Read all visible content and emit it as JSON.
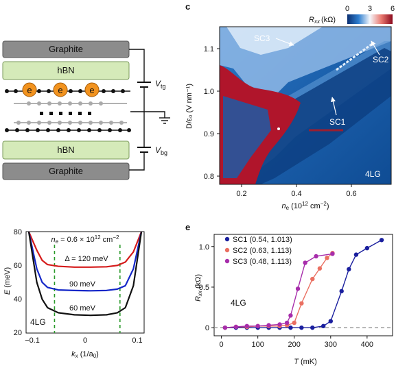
{
  "panel_labels": {
    "c": "c",
    "e": "e"
  },
  "schematic": {
    "top_graphite": "Graphite",
    "top_hbn": "hBN",
    "bottom_hbn": "hBN",
    "bottom_graphite": "Graphite",
    "electron_label": "e",
    "vtg": {
      "v": "V",
      "sub": "tg"
    },
    "vbg": {
      "v": "V",
      "sub": "bg"
    }
  },
  "colors": {
    "graphite": "#8c8c8c",
    "hbn": "#d5eab9",
    "electron": "#f2931f",
    "map_blue": "#1a5ea8",
    "map_red": "#b0152b",
    "line_black": "#111111",
    "line_blue": "#1326c8",
    "line_red": "#d51a1a",
    "sc1": "#1a1f9e",
    "sc2": "#ea6f61",
    "sc3": "#a72dab",
    "dashed_green": "#2a9a2a"
  },
  "colorbar": {
    "title": "R",
    "title_sub": "xx",
    "unit": "(kΩ)",
    "ticks": [
      "0",
      "3",
      "6"
    ]
  },
  "map_c": {
    "xticks": [
      "0.2",
      "0.4",
      "0.6"
    ],
    "yticks": [
      "1.1",
      "1.0",
      "0.9",
      "0.8"
    ],
    "xlabel": {
      "base": "n",
      "sub": "e",
      "unit": " (10",
      "sup": "12",
      "tail": " cm",
      "sup2": "−2",
      "close": ")"
    },
    "ylabel": "D/ε₀ (V nm⁻¹)",
    "annotations": [
      "SC3",
      "SC2",
      "SC1"
    ],
    "sample": "4LG"
  },
  "chart_data": [
    {
      "type": "line",
      "panel": "band dispersion",
      "ylabel": "E (meV)",
      "xlabel": "k_x (1/a0)",
      "xticks": [
        "−0.1",
        "0",
        "0.1"
      ],
      "yticks": [
        "80",
        "60",
        "40",
        "20"
      ],
      "ylim": [
        20,
        80
      ],
      "xlim": [
        -0.12,
        0.1
      ],
      "density_label": "n_e = 0.6 × 10^12 cm^−2",
      "sample": "4LG",
      "dashed_k": [
        -0.067,
        0.055
      ],
      "series": [
        {
          "name": "Δ = 120 meV",
          "x": [
            -0.115,
            -0.1,
            -0.09,
            -0.08,
            -0.06,
            -0.03,
            0,
            0.03,
            0.05,
            0.065,
            0.08,
            0.095
          ],
          "y": [
            80,
            69,
            63,
            60.5,
            59.5,
            59,
            59,
            59.2,
            60,
            62,
            68,
            80
          ]
        },
        {
          "name": "90 meV",
          "x": [
            -0.115,
            -0.1,
            -0.09,
            -0.08,
            -0.06,
            -0.03,
            0,
            0.03,
            0.05,
            0.065,
            0.08,
            0.095
          ],
          "y": [
            80,
            58,
            50,
            47,
            45.5,
            45.2,
            45,
            45.2,
            46,
            48,
            58,
            80
          ]
        },
        {
          "name": "60 meV",
          "x": [
            -0.115,
            -0.1,
            -0.09,
            -0.08,
            -0.06,
            -0.03,
            0,
            0.03,
            0.05,
            0.065,
            0.08,
            0.095
          ],
          "y": [
            80,
            50,
            40,
            35,
            32,
            30.8,
            30.5,
            30.8,
            32,
            35,
            48,
            80
          ]
        }
      ]
    },
    {
      "type": "line",
      "panel": "e",
      "xlabel": "T (mK)",
      "ylabel": "R_xx (kΩ)",
      "xticks": [
        "0",
        "100",
        "200",
        "300",
        "400"
      ],
      "yticks": [
        "0",
        "0.5",
        "1.0"
      ],
      "xlim": [
        -20,
        470
      ],
      "ylim": [
        -0.1,
        1.15
      ],
      "sample": "4LG",
      "series": [
        {
          "name": "SC1 (0.54, 1.013)",
          "x": [
            10,
            40,
            70,
            100,
            130,
            160,
            190,
            220,
            250,
            280,
            300,
            330,
            350,
            370,
            400,
            440
          ],
          "y": [
            0,
            0,
            0,
            0,
            0,
            0,
            0,
            0,
            0,
            0.02,
            0.08,
            0.45,
            0.72,
            0.9,
            0.98,
            1.08
          ]
        },
        {
          "name": "SC2 (0.63, 1.113)",
          "x": [
            10,
            40,
            70,
            100,
            130,
            160,
            180,
            200,
            220,
            250,
            270,
            290,
            305
          ],
          "y": [
            0,
            0.01,
            0.01,
            0.02,
            0.02,
            0.02,
            0.03,
            0.06,
            0.3,
            0.6,
            0.73,
            0.86,
            0.92
          ]
        },
        {
          "name": "SC3 (0.48, 1.113)",
          "x": [
            10,
            40,
            70,
            100,
            130,
            160,
            180,
            190,
            210,
            230,
            260,
            305
          ],
          "y": [
            0,
            0.01,
            0.02,
            0.02,
            0.03,
            0.04,
            0.06,
            0.15,
            0.48,
            0.8,
            0.88,
            0.91
          ]
        }
      ]
    }
  ]
}
